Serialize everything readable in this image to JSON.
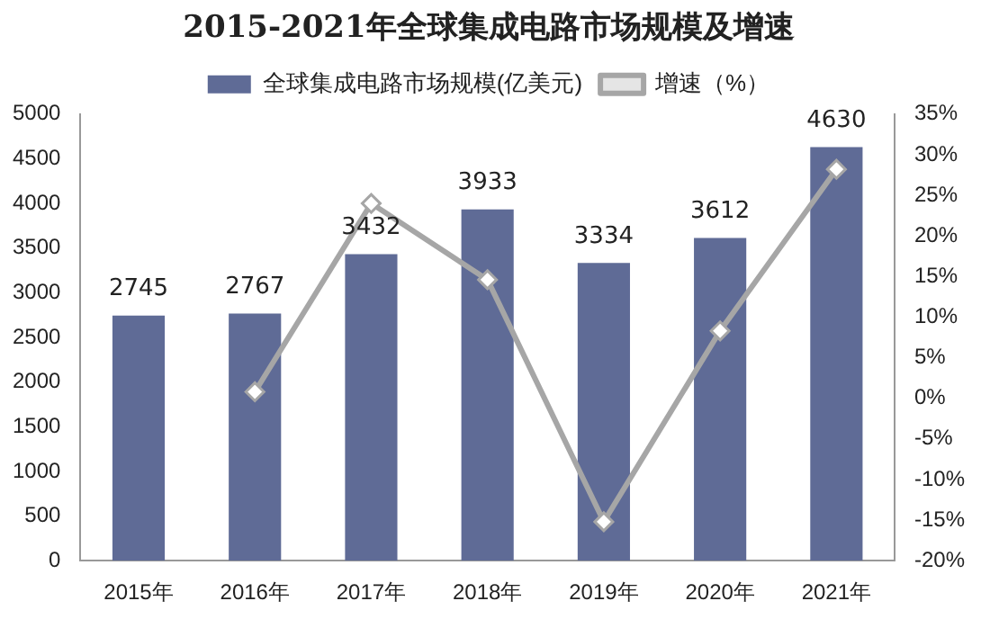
{
  "chart_data": {
    "type": "bar",
    "title": "2015-2021年全球集成电路市场规模及增速",
    "categories": [
      "2015年",
      "2016年",
      "2017年",
      "2018年",
      "2019年",
      "2020年",
      "2021年"
    ],
    "series": [
      {
        "name": "全球集成电路市场规模(亿美元)",
        "color": "#5f6b96",
        "values": [
          2745,
          2767,
          3432,
          3933,
          3334,
          3612,
          4630
        ],
        "value_labels": [
          "2745",
          "2767",
          "3432",
          "3933",
          "3334",
          "3612",
          "4630"
        ]
      },
      {
        "name": "增速（%）",
        "type": "line",
        "axis": "y2",
        "color": "#a6a6a6",
        "marker": "diamond",
        "values": [
          null,
          0.8,
          24.0,
          14.6,
          -15.2,
          8.3,
          28.2
        ]
      }
    ],
    "ylim": [
      0,
      5000
    ],
    "yticks": [
      0,
      500,
      1000,
      1500,
      2000,
      2500,
      3000,
      3500,
      4000,
      4500,
      5000
    ],
    "y2lim": [
      -20,
      35
    ],
    "y2ticks": [
      {
        "value": -20,
        "label": "-20%"
      },
      {
        "value": -15,
        "label": "-15%"
      },
      {
        "value": -10,
        "label": "-10%"
      },
      {
        "value": -5,
        "label": "-5%"
      },
      {
        "value": 0,
        "label": "0%"
      },
      {
        "value": 5,
        "label": "5%"
      },
      {
        "value": 10,
        "label": "10%"
      },
      {
        "value": 15,
        "label": "15%"
      },
      {
        "value": 20,
        "label": "20%"
      },
      {
        "value": 25,
        "label": "25%"
      },
      {
        "value": 30,
        "label": "30%"
      },
      {
        "value": 35,
        "label": "35%"
      }
    ],
    "grid": false,
    "legend": "top"
  }
}
